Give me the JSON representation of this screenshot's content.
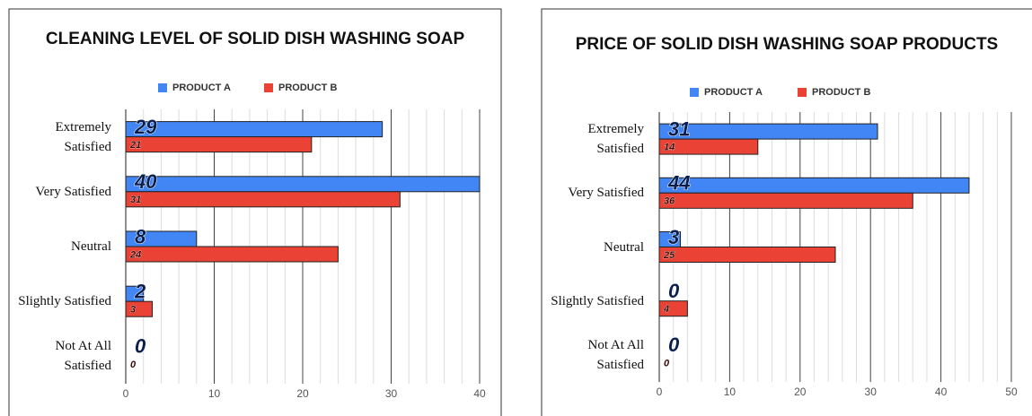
{
  "chart_data": [
    {
      "type": "bar",
      "orientation": "horizontal",
      "title": "CLEANING LEVEL OF SOLID DISH WASHING SOAP",
      "categories": [
        "Extremely Satisfied",
        "Very Satisfied",
        "Neutral",
        "Slightly Satisfied",
        "Not At All Satisfied"
      ],
      "series": [
        {
          "name": "PRODUCT A",
          "color": "#4285f4",
          "values": [
            29,
            40,
            8,
            2,
            0
          ]
        },
        {
          "name": "PRODUCT B",
          "color": "#ea4335",
          "values": [
            21,
            31,
            24,
            3,
            0
          ]
        }
      ],
      "xlim": [
        0,
        40
      ],
      "xticks": [
        0,
        10,
        20,
        30,
        40
      ],
      "grid": true,
      "legend": "top"
    },
    {
      "type": "bar",
      "orientation": "horizontal",
      "title": "PRICE OF SOLID DISH WASHING SOAP PRODUCTS",
      "categories": [
        "Extremely Satisfied",
        "Very Satisfied",
        "Neutral",
        "Slightly Satisfied",
        "Not At All Satisfied"
      ],
      "series": [
        {
          "name": "PRODUCT A",
          "color": "#4285f4",
          "values": [
            31,
            44,
            3,
            0,
            0
          ]
        },
        {
          "name": "PRODUCT B",
          "color": "#ea4335",
          "values": [
            14,
            36,
            25,
            4,
            0
          ]
        }
      ],
      "xlim": [
        0,
        50
      ],
      "xticks": [
        0,
        10,
        20,
        30,
        40,
        50
      ],
      "grid": true,
      "legend": "top"
    }
  ]
}
